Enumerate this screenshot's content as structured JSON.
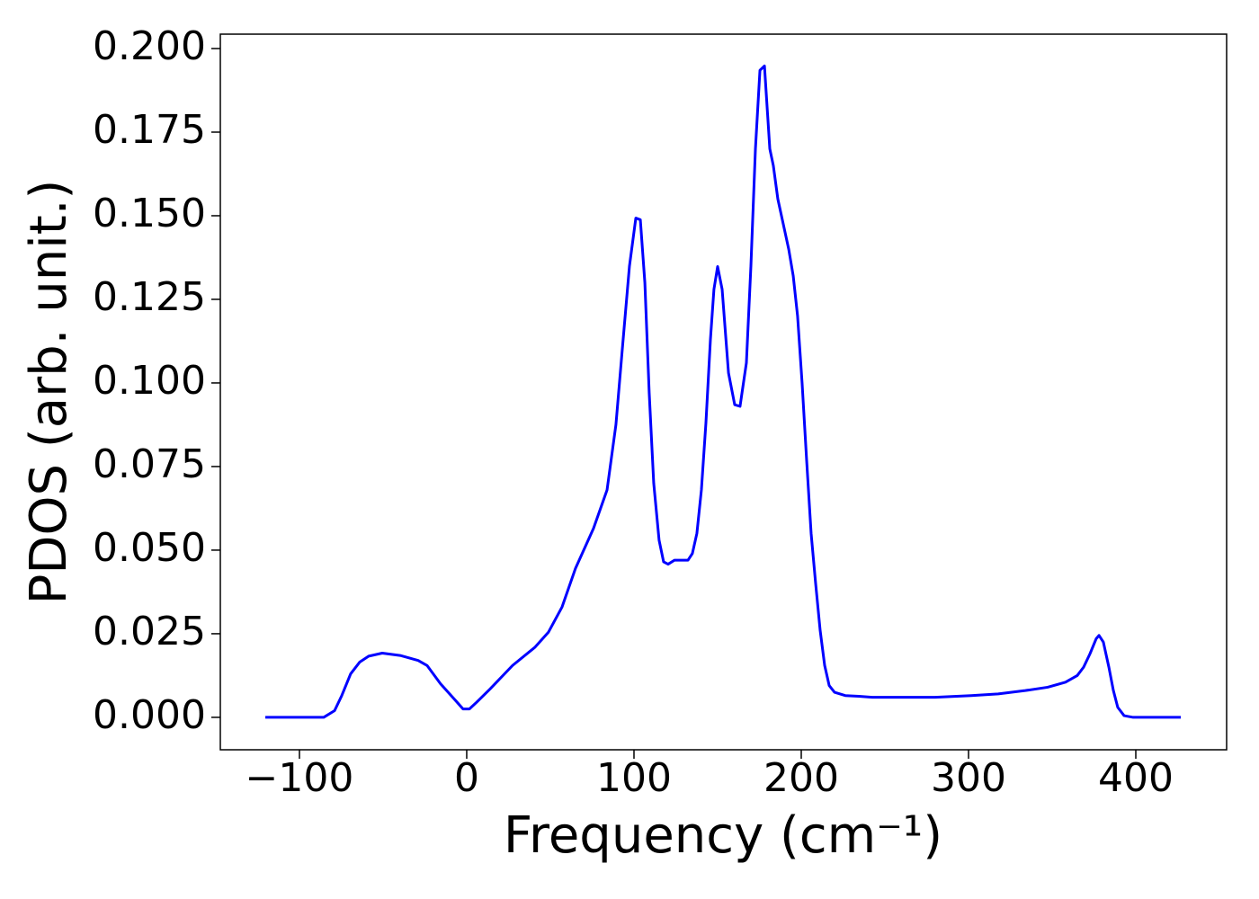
{
  "chart_data": {
    "type": "line",
    "xlabel": "Frequency (cm⁻¹)",
    "ylabel": "PDOS (arb. unit.)",
    "xlim": [
      -147.3,
      454.3
    ],
    "ylim": [
      -0.0097,
      0.2043
    ],
    "xticks": [
      {
        "value": -100,
        "label": "−100"
      },
      0,
      100,
      200,
      300,
      400
    ],
    "yticks": [
      {
        "value": 0,
        "label": "0.000"
      },
      {
        "value": 0.025,
        "label": "0.025"
      },
      {
        "value": 0.05,
        "label": "0.050"
      },
      {
        "value": 0.075,
        "label": "0.075"
      },
      {
        "value": 0.1,
        "label": "0.100"
      },
      {
        "value": 0.125,
        "label": "0.125"
      },
      {
        "value": 0.15,
        "label": "0.150"
      },
      {
        "value": 0.175,
        "label": "0.175"
      },
      {
        "value": 0.2,
        "label": "0.200"
      }
    ],
    "grid": false,
    "x": [
      -120.4,
      -85.5,
      -79,
      -74.7,
      -69.4,
      -64,
      -58.6,
      -50.5,
      -39.8,
      -29,
      -23.7,
      -15.6,
      -7.5,
      -2.2,
      1.6,
      5.9,
      14,
      27.4,
      40.9,
      48.9,
      57,
      65,
      75.8,
      83.9,
      89.2,
      93,
      97.3,
      101.1,
      103.8,
      106.5,
      109.1,
      111.8,
      115,
      117.7,
      120.4,
      124.2,
      132.3,
      134.9,
      137.6,
      140.3,
      143,
      145.7,
      147.8,
      150,
      152.7,
      156.5,
      160.2,
      163.4,
      167.2,
      169.9,
      172.6,
      175.3,
      178,
      181.2,
      183.3,
      186,
      192.5,
      195.2,
      197.8,
      200.5,
      203.2,
      205.9,
      208.6,
      211.3,
      214,
      216.7,
      219.9,
      226.3,
      234.4,
      242.5,
      258.6,
      280,
      301.6,
      317.7,
      333.9,
      347.3,
      358,
      365,
      368.8,
      372.6,
      376.3,
      378,
      380.6,
      383.9,
      386.6,
      389.2,
      393,
      398.4,
      426.9
    ],
    "series": [
      {
        "color": "#0000ff",
        "values": [
          0,
          0,
          0.002,
          0.0065,
          0.013,
          0.0165,
          0.0183,
          0.0192,
          0.0185,
          0.017,
          0.0155,
          0.01,
          0.0055,
          0.0025,
          0.0025,
          0.0045,
          0.0085,
          0.0155,
          0.021,
          0.0255,
          0.033,
          0.0445,
          0.0565,
          0.068,
          0.0875,
          0.11,
          0.135,
          0.1493,
          0.1488,
          0.13,
          0.097,
          0.07,
          0.053,
          0.0465,
          0.0458,
          0.047,
          0.047,
          0.049,
          0.055,
          0.068,
          0.088,
          0.113,
          0.128,
          0.1348,
          0.128,
          0.103,
          0.0935,
          0.093,
          0.106,
          0.135,
          0.17,
          0.1935,
          0.1948,
          0.17,
          0.165,
          0.155,
          0.14,
          0.132,
          0.12,
          0.1,
          0.077,
          0.055,
          0.04,
          0.026,
          0.0155,
          0.0095,
          0.0075,
          0.0065,
          0.0063,
          0.006,
          0.006,
          0.006,
          0.0065,
          0.007,
          0.008,
          0.009,
          0.0105,
          0.0125,
          0.015,
          0.019,
          0.0235,
          0.0245,
          0.0225,
          0.015,
          0.008,
          0.003,
          0.0005,
          0,
          0
        ]
      }
    ]
  }
}
